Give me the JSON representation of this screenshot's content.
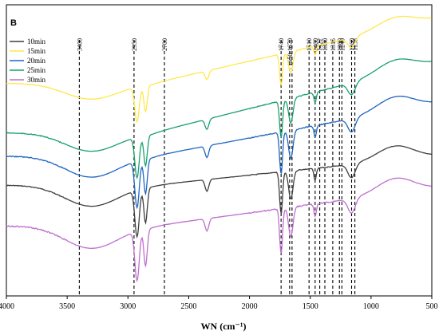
{
  "chart_data": {
    "type": "line",
    "panel_label": "B",
    "xlabel": "WN (cm⁻¹)",
    "xlim": [
      4000,
      500
    ],
    "x_reversed": true,
    "x_ticks": [
      4000,
      3500,
      3000,
      2500,
      2000,
      1500,
      1000,
      500
    ],
    "y_axis_shown": false,
    "legend_position": "top-left",
    "peak_lines": [
      {
        "wn": 3400,
        "label": "3400"
      },
      {
        "wn": 2950,
        "label": "2950"
      },
      {
        "wn": 2700,
        "label": "2700"
      },
      {
        "wn": 1740,
        "label": "1740"
      },
      {
        "wn": 1670,
        "label": "1650-1670"
      },
      {
        "wn": 1650,
        "label": ""
      },
      {
        "wn": 1510,
        "label": "1510"
      },
      {
        "wn": 1460,
        "label": "1460"
      },
      {
        "wn": 1422,
        "label": "1422"
      },
      {
        "wn": 1380,
        "label": "1380"
      },
      {
        "wn": 1315,
        "label": "1315"
      },
      {
        "wn": 1260,
        "label": "1260"
      },
      {
        "wn": 1240,
        "label": "1240"
      },
      {
        "wn": 1160,
        "label": "1160"
      },
      {
        "wn": 1133,
        "label": "1133"
      }
    ],
    "series": [
      {
        "name": "10min",
        "color": "#3f3f3f",
        "base": 0.62,
        "dip": 0.16,
        "rise": 0.1,
        "noise": 0.6
      },
      {
        "name": "15min",
        "color": "#ffe84d",
        "base": 0.27,
        "dip": 0.12,
        "rise": 0.22,
        "noise": 0.4
      },
      {
        "name": "20min",
        "color": "#1f66c1",
        "base": 0.52,
        "dip": 0.16,
        "rise": 0.18,
        "noise": 0.7
      },
      {
        "name": "25min",
        "color": "#19a06c",
        "base": 0.44,
        "dip": 0.14,
        "rise": 0.24,
        "noise": 0.6
      },
      {
        "name": "30min",
        "color": "#bf6fcf",
        "base": 0.76,
        "dip": 0.17,
        "rise": 0.13,
        "noise": 0.9
      }
    ]
  }
}
